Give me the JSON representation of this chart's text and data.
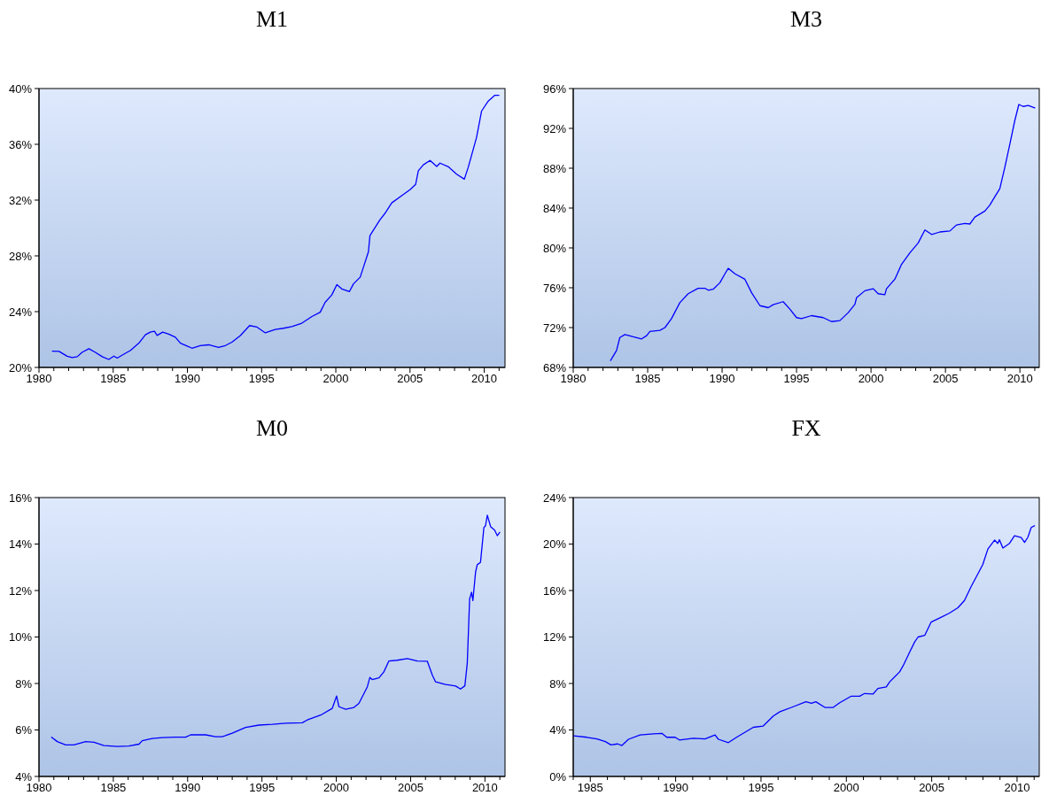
{
  "chart_data": [
    {
      "type": "line",
      "title": "M1",
      "xlim": [
        1980,
        2011.4
      ],
      "ylim": [
        20,
        40
      ],
      "xticks": [
        {
          "value": 1980,
          "label": "1980"
        },
        {
          "value": 1981,
          "label": null
        },
        {
          "value": 1982,
          "label": null
        },
        {
          "value": 1983,
          "label": null
        },
        {
          "value": 1984,
          "label": null
        },
        {
          "value": 1985,
          "label": "1985"
        },
        {
          "value": 1986,
          "label": null
        },
        {
          "value": 1987,
          "label": null
        },
        {
          "value": 1988,
          "label": null
        },
        {
          "value": 1989,
          "label": null
        },
        {
          "value": 1990,
          "label": "1990"
        },
        {
          "value": 1991,
          "label": null
        },
        {
          "value": 1992,
          "label": null
        },
        {
          "value": 1993,
          "label": null
        },
        {
          "value": 1994,
          "label": null
        },
        {
          "value": 1995,
          "label": "1995"
        },
        {
          "value": 1996,
          "label": null
        },
        {
          "value": 1997,
          "label": null
        },
        {
          "value": 1998,
          "label": null
        },
        {
          "value": 1999,
          "label": null
        },
        {
          "value": 2000,
          "label": "2000"
        },
        {
          "value": 2001,
          "label": null
        },
        {
          "value": 2002,
          "label": null
        },
        {
          "value": 2003,
          "label": null
        },
        {
          "value": 2004,
          "label": null
        },
        {
          "value": 2005,
          "label": "2005"
        },
        {
          "value": 2006,
          "label": null
        },
        {
          "value": 2007,
          "label": null
        },
        {
          "value": 2008,
          "label": null
        },
        {
          "value": 2009,
          "label": null
        },
        {
          "value": 2010,
          "label": "2010"
        },
        {
          "value": 2011,
          "label": null
        }
      ],
      "yticks": [
        {
          "value": 20,
          "label": "20%"
        },
        {
          "value": 24,
          "label": "24%"
        },
        {
          "value": 28,
          "label": "28%"
        },
        {
          "value": 32,
          "label": "32%"
        },
        {
          "value": 36,
          "label": "36%"
        },
        {
          "value": 40,
          "label": "40%"
        }
      ],
      "series": [
        {
          "color": "#0000ff",
          "x": [
            1980.9,
            1981.35,
            1981.9,
            1982.24,
            1982.58,
            1982.9,
            1983.36,
            1983.8,
            1984.26,
            1984.7,
            1985.05,
            1985.27,
            1985.72,
            1986.17,
            1986.73,
            1987.17,
            1987.5,
            1987.78,
            1987.96,
            1988.34,
            1988.74,
            1989.19,
            1989.53,
            1989.98,
            1990.31,
            1990.87,
            1991.43,
            1992.1,
            1992.56,
            1993.0,
            1993.57,
            1994.19,
            1994.69,
            1995.25,
            1995.92,
            1996.48,
            1997.04,
            1997.71,
            1998.39,
            1998.95,
            1999.28,
            1999.73,
            2000.07,
            2000.4,
            2000.92,
            2001.19,
            2001.64,
            2001.86,
            2002.2,
            2002.3,
            2002.98,
            2003.3,
            2003.77,
            2004.44,
            2005.0,
            2005.38,
            2005.56,
            2005.9,
            2006.35,
            2006.8,
            2007.02,
            2007.58,
            2008.14,
            2008.66,
            2008.92,
            2009.48,
            2009.82,
            2010.27,
            2010.72,
            2010.99
          ],
          "values": [
            21.17,
            21.15,
            20.8,
            20.7,
            20.77,
            21.08,
            21.34,
            21.08,
            20.77,
            20.57,
            20.81,
            20.67,
            20.95,
            21.22,
            21.74,
            22.34,
            22.53,
            22.6,
            22.29,
            22.53,
            22.39,
            22.17,
            21.74,
            21.53,
            21.38,
            21.57,
            21.62,
            21.43,
            21.57,
            21.81,
            22.29,
            23.0,
            22.89,
            22.48,
            22.72,
            22.81,
            22.93,
            23.17,
            23.65,
            23.96,
            24.67,
            25.2,
            25.94,
            25.63,
            25.44,
            25.99,
            26.47,
            27.18,
            28.3,
            29.45,
            30.6,
            31.03,
            31.8,
            32.32,
            32.75,
            33.13,
            34.1,
            34.53,
            34.84,
            34.41,
            34.65,
            34.39,
            33.86,
            33.5,
            34.34,
            36.48,
            38.38,
            39.1,
            39.52,
            39.52
          ]
        }
      ]
    },
    {
      "type": "line",
      "title": "M3",
      "xlim": [
        1980,
        2011.3
      ],
      "ylim": [
        68,
        96
      ],
      "xticks": [
        {
          "value": 1980,
          "label": "1980"
        },
        {
          "value": 1981,
          "label": null
        },
        {
          "value": 1982,
          "label": null
        },
        {
          "value": 1983,
          "label": null
        },
        {
          "value": 1984,
          "label": null
        },
        {
          "value": 1985,
          "label": "1985"
        },
        {
          "value": 1986,
          "label": null
        },
        {
          "value": 1987,
          "label": null
        },
        {
          "value": 1988,
          "label": null
        },
        {
          "value": 1989,
          "label": null
        },
        {
          "value": 1990,
          "label": "1990"
        },
        {
          "value": 1991,
          "label": null
        },
        {
          "value": 1992,
          "label": null
        },
        {
          "value": 1993,
          "label": null
        },
        {
          "value": 1994,
          "label": null
        },
        {
          "value": 1995,
          "label": "1995"
        },
        {
          "value": 1996,
          "label": null
        },
        {
          "value": 1997,
          "label": null
        },
        {
          "value": 1998,
          "label": null
        },
        {
          "value": 1999,
          "label": null
        },
        {
          "value": 2000,
          "label": "2000"
        },
        {
          "value": 2001,
          "label": null
        },
        {
          "value": 2002,
          "label": null
        },
        {
          "value": 2003,
          "label": null
        },
        {
          "value": 2004,
          "label": null
        },
        {
          "value": 2005,
          "label": "2005"
        },
        {
          "value": 2006,
          "label": null
        },
        {
          "value": 2007,
          "label": null
        },
        {
          "value": 2008,
          "label": null
        },
        {
          "value": 2009,
          "label": null
        },
        {
          "value": 2010,
          "label": "2010"
        },
        {
          "value": 2011,
          "label": null
        }
      ],
      "yticks": [
        {
          "value": 68,
          "label": "68%"
        },
        {
          "value": 72,
          "label": "72%"
        },
        {
          "value": 76,
          "label": "76%"
        },
        {
          "value": 80,
          "label": "80%"
        },
        {
          "value": 84,
          "label": "84%"
        },
        {
          "value": 88,
          "label": "88%"
        },
        {
          "value": 92,
          "label": "92%"
        },
        {
          "value": 96,
          "label": "96%"
        }
      ],
      "series": [
        {
          "color": "#0000ff",
          "x": [
            1982.51,
            1982.91,
            1983.13,
            1983.47,
            1984.03,
            1984.59,
            1984.93,
            1985.15,
            1985.82,
            1986.16,
            1986.6,
            1987.16,
            1987.72,
            1988.39,
            1988.84,
            1989.07,
            1989.4,
            1989.85,
            1990.19,
            1990.41,
            1990.86,
            1991.53,
            1991.98,
            1992.54,
            1993.1,
            1993.43,
            1994.1,
            1994.55,
            1995.0,
            1995.33,
            1996.0,
            1996.79,
            1997.35,
            1997.91,
            1998.47,
            1998.92,
            1999.03,
            1999.59,
            2000.15,
            2000.48,
            2000.93,
            2001.04,
            2001.6,
            2002.05,
            2002.61,
            2003.17,
            2003.62,
            2004.07,
            2004.63,
            2005.3,
            2005.74,
            2006.3,
            2006.64,
            2006.98,
            2007.65,
            2007.98,
            2008.32,
            2008.65,
            2008.99,
            2009.33,
            2009.66,
            2009.93,
            2010.22,
            2010.56,
            2011.0
          ],
          "values": [
            68.7,
            69.7,
            71.0,
            71.3,
            71.07,
            70.86,
            71.19,
            71.62,
            71.72,
            72.0,
            72.9,
            74.5,
            75.4,
            75.95,
            75.95,
            75.75,
            75.85,
            76.5,
            77.4,
            77.95,
            77.4,
            76.85,
            75.5,
            74.2,
            74.0,
            74.3,
            74.6,
            73.85,
            73.0,
            72.9,
            73.2,
            73.0,
            72.6,
            72.7,
            73.5,
            74.35,
            75.0,
            75.7,
            75.9,
            75.4,
            75.3,
            75.9,
            76.85,
            78.35,
            79.5,
            80.5,
            81.8,
            81.35,
            81.6,
            81.7,
            82.3,
            82.45,
            82.4,
            83.1,
            83.7,
            84.3,
            85.15,
            85.95,
            88.1,
            90.45,
            92.8,
            94.4,
            94.2,
            94.3,
            94.05
          ]
        }
      ]
    },
    {
      "type": "line",
      "title": "M0",
      "xlim": [
        1980,
        2011.35
      ],
      "ylim": [
        4,
        16
      ],
      "xticks": [
        {
          "value": 1980,
          "label": "1980"
        },
        {
          "value": 1981,
          "label": null
        },
        {
          "value": 1982,
          "label": null
        },
        {
          "value": 1983,
          "label": null
        },
        {
          "value": 1984,
          "label": null
        },
        {
          "value": 1985,
          "label": "1985"
        },
        {
          "value": 1986,
          "label": null
        },
        {
          "value": 1987,
          "label": null
        },
        {
          "value": 1988,
          "label": null
        },
        {
          "value": 1989,
          "label": null
        },
        {
          "value": 1990,
          "label": "1990"
        },
        {
          "value": 1991,
          "label": null
        },
        {
          "value": 1992,
          "label": null
        },
        {
          "value": 1993,
          "label": null
        },
        {
          "value": 1994,
          "label": null
        },
        {
          "value": 1995,
          "label": "1995"
        },
        {
          "value": 1996,
          "label": null
        },
        {
          "value": 1997,
          "label": null
        },
        {
          "value": 1998,
          "label": null
        },
        {
          "value": 1999,
          "label": null
        },
        {
          "value": 2000,
          "label": "2000"
        },
        {
          "value": 2001,
          "label": null
        },
        {
          "value": 2002,
          "label": null
        },
        {
          "value": 2003,
          "label": null
        },
        {
          "value": 2004,
          "label": null
        },
        {
          "value": 2005,
          "label": "2005"
        },
        {
          "value": 2006,
          "label": null
        },
        {
          "value": 2007,
          "label": null
        },
        {
          "value": 2008,
          "label": null
        },
        {
          "value": 2009,
          "label": null
        },
        {
          "value": 2010,
          "label": "2010"
        },
        {
          "value": 2011,
          "label": null
        }
      ],
      "yticks": [
        {
          "value": 4,
          "label": "4%"
        },
        {
          "value": 6,
          "label": "6%"
        },
        {
          "value": 8,
          "label": "8%"
        },
        {
          "value": 10,
          "label": "10%"
        },
        {
          "value": 12,
          "label": "12%"
        },
        {
          "value": 14,
          "label": "14%"
        },
        {
          "value": 16,
          "label": "16%"
        }
      ],
      "series": [
        {
          "color": "#0000ff",
          "x": [
            1980.85,
            1981.23,
            1981.79,
            1982.35,
            1983.14,
            1983.7,
            1984.37,
            1985.27,
            1986.05,
            1986.73,
            1986.95,
            1987.62,
            1988.3,
            1989.19,
            1989.87,
            1990.2,
            1991.21,
            1991.88,
            1992.33,
            1993.0,
            1993.9,
            1994.8,
            1995.7,
            1996.6,
            1997.71,
            1998.05,
            1998.95,
            1999.73,
            2000.02,
            2000.18,
            2000.63,
            2001.19,
            2001.52,
            2001.75,
            2002.09,
            2002.26,
            2002.42,
            2002.87,
            2003.2,
            2003.54,
            2004.1,
            2004.78,
            2005.45,
            2006.12,
            2006.46,
            2006.68,
            2007.35,
            2008.03,
            2008.36,
            2008.65,
            2008.81,
            2008.97,
            2009.1,
            2009.19,
            2009.37,
            2009.48,
            2009.7,
            2009.93,
            2010.04,
            2010.16,
            2010.39,
            2010.65,
            2010.83,
            2010.99
          ],
          "values": [
            5.69,
            5.5,
            5.36,
            5.36,
            5.5,
            5.47,
            5.33,
            5.29,
            5.31,
            5.39,
            5.54,
            5.63,
            5.67,
            5.69,
            5.69,
            5.79,
            5.79,
            5.71,
            5.71,
            5.86,
            6.11,
            6.21,
            6.24,
            6.29,
            6.31,
            6.43,
            6.64,
            6.93,
            7.46,
            7.0,
            6.89,
            6.97,
            7.14,
            7.43,
            7.86,
            8.26,
            8.17,
            8.24,
            8.5,
            8.97,
            9.0,
            9.07,
            8.97,
            8.96,
            8.36,
            8.07,
            7.96,
            7.89,
            7.76,
            7.9,
            8.86,
            11.64,
            11.93,
            11.57,
            12.79,
            13.11,
            13.21,
            14.71,
            14.79,
            15.24,
            14.74,
            14.6,
            14.36,
            14.5
          ]
        }
      ]
    },
    {
      "type": "line",
      "title": "FX",
      "xlim": [
        1984,
        2011.3
      ],
      "ylim": [
        0,
        24
      ],
      "xticks": [
        {
          "value": 1984,
          "label": null
        },
        {
          "value": 1985,
          "label": "1985"
        },
        {
          "value": 1986,
          "label": null
        },
        {
          "value": 1987,
          "label": null
        },
        {
          "value": 1988,
          "label": null
        },
        {
          "value": 1989,
          "label": null
        },
        {
          "value": 1990,
          "label": "1990"
        },
        {
          "value": 1991,
          "label": null
        },
        {
          "value": 1992,
          "label": null
        },
        {
          "value": 1993,
          "label": null
        },
        {
          "value": 1994,
          "label": null
        },
        {
          "value": 1995,
          "label": "1995"
        },
        {
          "value": 1996,
          "label": null
        },
        {
          "value": 1997,
          "label": null
        },
        {
          "value": 1998,
          "label": null
        },
        {
          "value": 1999,
          "label": null
        },
        {
          "value": 2000,
          "label": "2000"
        },
        {
          "value": 2001,
          "label": null
        },
        {
          "value": 2002,
          "label": null
        },
        {
          "value": 2003,
          "label": null
        },
        {
          "value": 2004,
          "label": null
        },
        {
          "value": 2005,
          "label": "2005"
        },
        {
          "value": 2006,
          "label": null
        },
        {
          "value": 2007,
          "label": null
        },
        {
          "value": 2008,
          "label": null
        },
        {
          "value": 2009,
          "label": null
        },
        {
          "value": 2010,
          "label": "2010"
        },
        {
          "value": 2011,
          "label": null
        }
      ],
      "yticks": [
        {
          "value": 0,
          "label": "0%"
        },
        {
          "value": 4,
          "label": "4%"
        },
        {
          "value": 8,
          "label": "8%"
        },
        {
          "value": 12,
          "label": "12%"
        },
        {
          "value": 16,
          "label": "16%"
        },
        {
          "value": 20,
          "label": "20%"
        },
        {
          "value": 24,
          "label": "24%"
        }
      ],
      "series": [
        {
          "color": "#0000ff",
          "x": [
            1984.03,
            1984.8,
            1985.39,
            1985.88,
            1986.21,
            1986.6,
            1986.85,
            1987.24,
            1987.92,
            1988.7,
            1989.19,
            1989.48,
            1989.97,
            1990.22,
            1991.04,
            1991.72,
            1992.31,
            1992.5,
            1993.09,
            1993.57,
            1994.55,
            1995.13,
            1995.72,
            1996.11,
            1996.89,
            1997.63,
            1997.96,
            1998.21,
            1998.74,
            1999.23,
            1999.61,
            2000.29,
            2000.78,
            2001.07,
            2001.56,
            2001.85,
            2002.34,
            2002.54,
            2003.12,
            2003.32,
            2003.71,
            2004.0,
            2004.2,
            2004.59,
            2004.97,
            2005.56,
            2006.04,
            2006.53,
            2006.92,
            2007.31,
            2007.6,
            2007.99,
            2008.29,
            2008.68,
            2008.87,
            2008.97,
            2009.17,
            2009.56,
            2009.85,
            2010.24,
            2010.44,
            2010.63,
            2010.83,
            2011.02
          ],
          "values": [
            3.49,
            3.37,
            3.23,
            3.0,
            2.71,
            2.8,
            2.66,
            3.2,
            3.57,
            3.66,
            3.71,
            3.37,
            3.37,
            3.14,
            3.29,
            3.23,
            3.57,
            3.2,
            2.91,
            3.37,
            4.23,
            4.34,
            5.2,
            5.57,
            6.0,
            6.43,
            6.29,
            6.43,
            5.94,
            5.94,
            6.34,
            6.91,
            6.91,
            7.14,
            7.09,
            7.57,
            7.71,
            8.14,
            9.0,
            9.51,
            10.71,
            11.57,
            12.0,
            12.14,
            13.29,
            13.71,
            14.06,
            14.51,
            15.14,
            16.34,
            17.14,
            18.23,
            19.57,
            20.34,
            20.06,
            20.37,
            19.66,
            20.06,
            20.71,
            20.57,
            20.14,
            20.57,
            21.43,
            21.57
          ]
        }
      ]
    }
  ]
}
